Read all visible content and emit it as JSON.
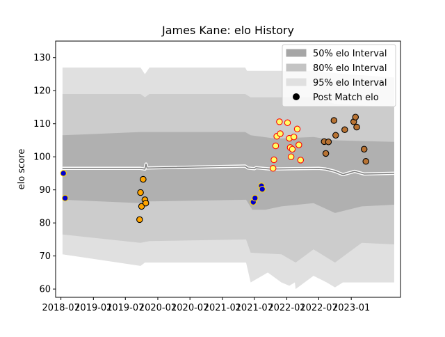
{
  "chart_data": {
    "type": "scatter",
    "title": "James Kane: elo History",
    "xlabel": "",
    "ylabel": "elo score",
    "xlim": [
      "2018-06-01",
      "2023-10-07"
    ],
    "ylim": [
      57.5,
      135
    ],
    "x_ticks": [
      "2018-07",
      "2019-01",
      "2019-07",
      "2020-01",
      "2020-07",
      "2021-01",
      "2021-07",
      "2022-01",
      "2022-07",
      "2023-01"
    ],
    "y_ticks": [
      60,
      70,
      80,
      90,
      100,
      110,
      120,
      130
    ],
    "grid": false,
    "legend_position": "upper right",
    "legend": [
      {
        "label": "50% elo Interval",
        "kind": "band",
        "color": "#a6a6a6"
      },
      {
        "label": "80% elo Interval",
        "kind": "band",
        "color": "#c4c4c4"
      },
      {
        "label": "95% elo Interval",
        "kind": "band",
        "color": "#e0e0e0"
      },
      {
        "label": "Post Match elo",
        "kind": "marker",
        "color": "#000000"
      }
    ],
    "bands": [
      {
        "name": "95% elo Interval",
        "color": "#e0e0e0",
        "upper": [
          [
            "2018-07-10",
            127
          ],
          [
            "2019-09-25",
            127
          ],
          [
            "2019-10-20",
            125
          ],
          [
            "2019-11-15",
            127
          ],
          [
            "2021-05-10",
            127
          ],
          [
            "2021-05-20",
            126
          ],
          [
            "2022-06-01",
            126
          ],
          [
            "2022-12-01",
            125
          ],
          [
            "2023-09-01",
            124
          ]
        ],
        "lower": [
          [
            "2018-07-10",
            70.5
          ],
          [
            "2019-09-25",
            67
          ],
          [
            "2019-10-20",
            68
          ],
          [
            "2019-11-15",
            68
          ],
          [
            "2021-05-15",
            68
          ],
          [
            "2021-06-10",
            62
          ],
          [
            "2021-09-15",
            65
          ],
          [
            "2021-12-01",
            62
          ],
          [
            "2022-01-15",
            61
          ],
          [
            "2022-02-15",
            62
          ],
          [
            "2022-02-20",
            60
          ],
          [
            "2022-06-01",
            64
          ],
          [
            "2022-08-15",
            62
          ],
          [
            "2022-10-01",
            60.5
          ],
          [
            "2022-11-15",
            62
          ],
          [
            "2023-03-01",
            62
          ],
          [
            "2023-09-01",
            62
          ]
        ]
      },
      {
        "name": "80% elo Interval",
        "color": "#cccccc",
        "upper": [
          [
            "2018-07-10",
            119
          ],
          [
            "2019-09-25",
            119
          ],
          [
            "2019-10-20",
            118
          ],
          [
            "2019-11-15",
            119
          ],
          [
            "2021-05-10",
            119
          ],
          [
            "2021-06-10",
            118
          ],
          [
            "2022-06-01",
            118
          ],
          [
            "2022-10-01",
            116
          ],
          [
            "2023-09-01",
            115
          ]
        ],
        "lower": [
          [
            "2018-07-10",
            76.5
          ],
          [
            "2019-09-25",
            74
          ],
          [
            "2019-11-15",
            74.5
          ],
          [
            "2021-05-15",
            75
          ],
          [
            "2021-06-10",
            71
          ],
          [
            "2021-12-01",
            70.5
          ],
          [
            "2022-02-20",
            68
          ],
          [
            "2022-06-01",
            72
          ],
          [
            "2022-10-01",
            68
          ],
          [
            "2023-03-01",
            74
          ],
          [
            "2023-09-01",
            73.5
          ]
        ]
      },
      {
        "name": "50% elo Interval",
        "color": "#b0b0b0",
        "upper": [
          [
            "2018-07-10",
            106.5
          ],
          [
            "2019-09-25",
            107.5
          ],
          [
            "2019-11-15",
            107.5
          ],
          [
            "2021-05-10",
            107.5
          ],
          [
            "2021-06-10",
            106.5
          ],
          [
            "2021-11-01",
            105.5
          ],
          [
            "2022-06-01",
            106
          ],
          [
            "2022-10-01",
            105
          ],
          [
            "2023-09-01",
            104.5
          ]
        ],
        "lower": [
          [
            "2018-07-10",
            87
          ],
          [
            "2019-09-25",
            86
          ],
          [
            "2019-11-15",
            86.5
          ],
          [
            "2021-05-15",
            87
          ],
          [
            "2021-06-20",
            84
          ],
          [
            "2021-09-01",
            84
          ],
          [
            "2021-12-01",
            85
          ],
          [
            "2022-06-01",
            86
          ],
          [
            "2022-10-01",
            83
          ],
          [
            "2023-03-01",
            85
          ],
          [
            "2023-09-01",
            85.5
          ]
        ]
      }
    ],
    "median_line": [
      [
        "2018-07-10",
        96.5
      ],
      [
        "2019-09-25",
        96.5
      ],
      [
        "2019-10-20",
        96.3
      ],
      [
        "2019-10-26",
        97.8
      ],
      [
        "2019-11-01",
        96.6
      ],
      [
        "2021-05-10",
        97.2
      ],
      [
        "2021-05-25",
        96.6
      ],
      [
        "2021-07-01",
        96.4
      ],
      [
        "2021-07-10",
        96.7
      ],
      [
        "2021-10-01",
        96.3
      ],
      [
        "2022-02-01",
        96.4
      ],
      [
        "2022-07-01",
        96.5
      ],
      [
        "2022-08-10",
        96.3
      ],
      [
        "2022-10-01",
        95.6
      ],
      [
        "2022-11-15",
        94.6
      ],
      [
        "2023-01-20",
        95.6
      ],
      [
        "2023-03-15",
        94.8
      ],
      [
        "2023-09-01",
        95
      ]
    ],
    "series": [
      {
        "fill": "#0000cd",
        "edge": "#ffd700",
        "points": [
          [
            "2018-07-15",
            95
          ],
          [
            "2018-07-25",
            87.5
          ],
          [
            "2021-06-25",
            86.3
          ],
          [
            "2021-07-05",
            87.5
          ],
          [
            "2021-08-10",
            91.2
          ],
          [
            "2021-08-15",
            90.2
          ]
        ]
      },
      {
        "fill": "#ffa500",
        "edge": "#000000",
        "points": [
          [
            "2019-09-20",
            81
          ],
          [
            "2019-09-25",
            89.2
          ],
          [
            "2019-10-01",
            85
          ],
          [
            "2019-10-10",
            93.2
          ],
          [
            "2019-10-20",
            87
          ],
          [
            "2019-10-25",
            86
          ]
        ]
      },
      {
        "fill": "#ffff66",
        "edge": "#ff0000",
        "points": [
          [
            "2021-10-15",
            96.5
          ],
          [
            "2021-10-20",
            99.1
          ],
          [
            "2021-10-30",
            103.3
          ],
          [
            "2021-11-05",
            106.2
          ],
          [
            "2021-11-20",
            110.6
          ],
          [
            "2021-11-25",
            107
          ],
          [
            "2022-01-05",
            110.3
          ],
          [
            "2022-01-15",
            105.6
          ],
          [
            "2022-01-20",
            102.8
          ],
          [
            "2022-01-25",
            100
          ],
          [
            "2022-02-01",
            102.3
          ],
          [
            "2022-02-10",
            106
          ],
          [
            "2022-03-01",
            108.4
          ],
          [
            "2022-03-10",
            103.6
          ],
          [
            "2022-03-20",
            99
          ]
        ]
      },
      {
        "fill": "#b87333",
        "edge": "#000000",
        "points": [
          [
            "2022-08-01",
            104.6
          ],
          [
            "2022-08-10",
            101
          ],
          [
            "2022-08-25",
            104.5
          ],
          [
            "2022-09-25",
            111
          ],
          [
            "2022-10-05",
            106.5
          ],
          [
            "2022-11-25",
            108.2
          ],
          [
            "2023-01-15",
            110.6
          ],
          [
            "2023-01-25",
            112
          ],
          [
            "2023-02-01",
            109
          ],
          [
            "2023-03-15",
            102.3
          ],
          [
            "2023-03-25",
            98.6
          ]
        ]
      }
    ]
  }
}
